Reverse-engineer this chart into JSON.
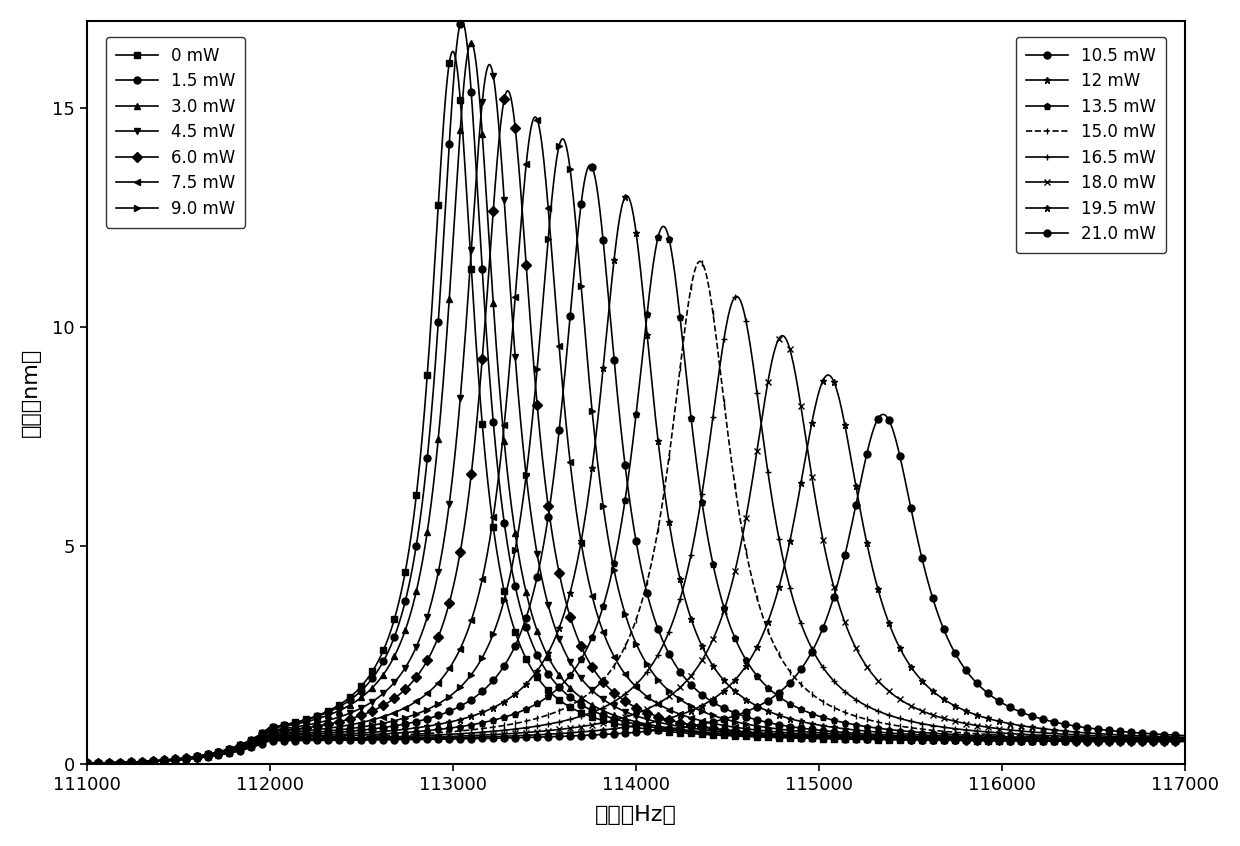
{
  "series": [
    {
      "label": "0 mW",
      "f0": 113000,
      "amp": 15.8,
      "Q": 380,
      "marker": "s",
      "linestyle": "-",
      "baseline": 0.5
    },
    {
      "label": "1.5 mW",
      "f0": 113050,
      "amp": 16.5,
      "Q": 370,
      "marker": "o",
      "linestyle": "-",
      "baseline": 0.5
    },
    {
      "label": "3.0 mW",
      "f0": 113100,
      "amp": 16.0,
      "Q": 360,
      "marker": "^",
      "linestyle": "-",
      "baseline": 0.5
    },
    {
      "label": "4.5 mW",
      "f0": 113200,
      "amp": 15.5,
      "Q": 350,
      "marker": "v",
      "linestyle": "-",
      "baseline": 0.5
    },
    {
      "label": "6.0 mW",
      "f0": 113300,
      "amp": 14.9,
      "Q": 340,
      "marker": "D",
      "linestyle": "-",
      "baseline": 0.5
    },
    {
      "label": "7.5 mW",
      "f0": 113450,
      "amp": 14.3,
      "Q": 330,
      "marker": "<",
      "linestyle": "-",
      "baseline": 0.5
    },
    {
      "label": "9.0 mW",
      "f0": 113600,
      "amp": 13.8,
      "Q": 320,
      "marker": ">",
      "linestyle": "-",
      "baseline": 0.5
    },
    {
      "label": "10.5 mW",
      "f0": 113750,
      "amp": 13.2,
      "Q": 310,
      "marker": "o",
      "linestyle": "-",
      "baseline": 0.5
    },
    {
      "label": "12 mW",
      "f0": 113950,
      "amp": 12.5,
      "Q": 300,
      "marker": "*",
      "linestyle": "-",
      "baseline": 0.5
    },
    {
      "label": "13.5 mW",
      "f0": 114150,
      "amp": 11.8,
      "Q": 290,
      "marker": "p",
      "linestyle": "-",
      "baseline": 0.5
    },
    {
      "label": "15.0 mW",
      "f0": 114350,
      "amp": 11.0,
      "Q": 280,
      "marker": "|",
      "linestyle": "--",
      "baseline": 0.5
    },
    {
      "label": "16.5 mW",
      "f0": 114550,
      "amp": 10.2,
      "Q": 270,
      "marker": "+",
      "linestyle": "-",
      "baseline": 0.5
    },
    {
      "label": "18.0 mW",
      "f0": 114800,
      "amp": 9.3,
      "Q": 260,
      "marker": "x",
      "linestyle": "-",
      "baseline": 0.5
    },
    {
      "label": "19.5 mW",
      "f0": 115050,
      "amp": 8.4,
      "Q": 250,
      "marker": "*",
      "linestyle": "-",
      "baseline": 0.5
    },
    {
      "label": "21.0 mW",
      "f0": 115350,
      "amp": 7.5,
      "Q": 240,
      "marker": "o",
      "linestyle": "-",
      "baseline": 0.5
    }
  ],
  "xmin": 111000,
  "xmax": 117000,
  "ymin": 0,
  "ymax": 17,
  "xlabel": "频率（Hz）",
  "ylabel": "振幅（nm）",
  "xticks": [
    111000,
    112000,
    113000,
    114000,
    115000,
    116000,
    117000
  ],
  "yticks": [
    0,
    5,
    10,
    15
  ],
  "background_color": "#ffffff",
  "line_color": "#000000",
  "markersize": 5,
  "linewidth": 1.2,
  "marker_step": 30
}
